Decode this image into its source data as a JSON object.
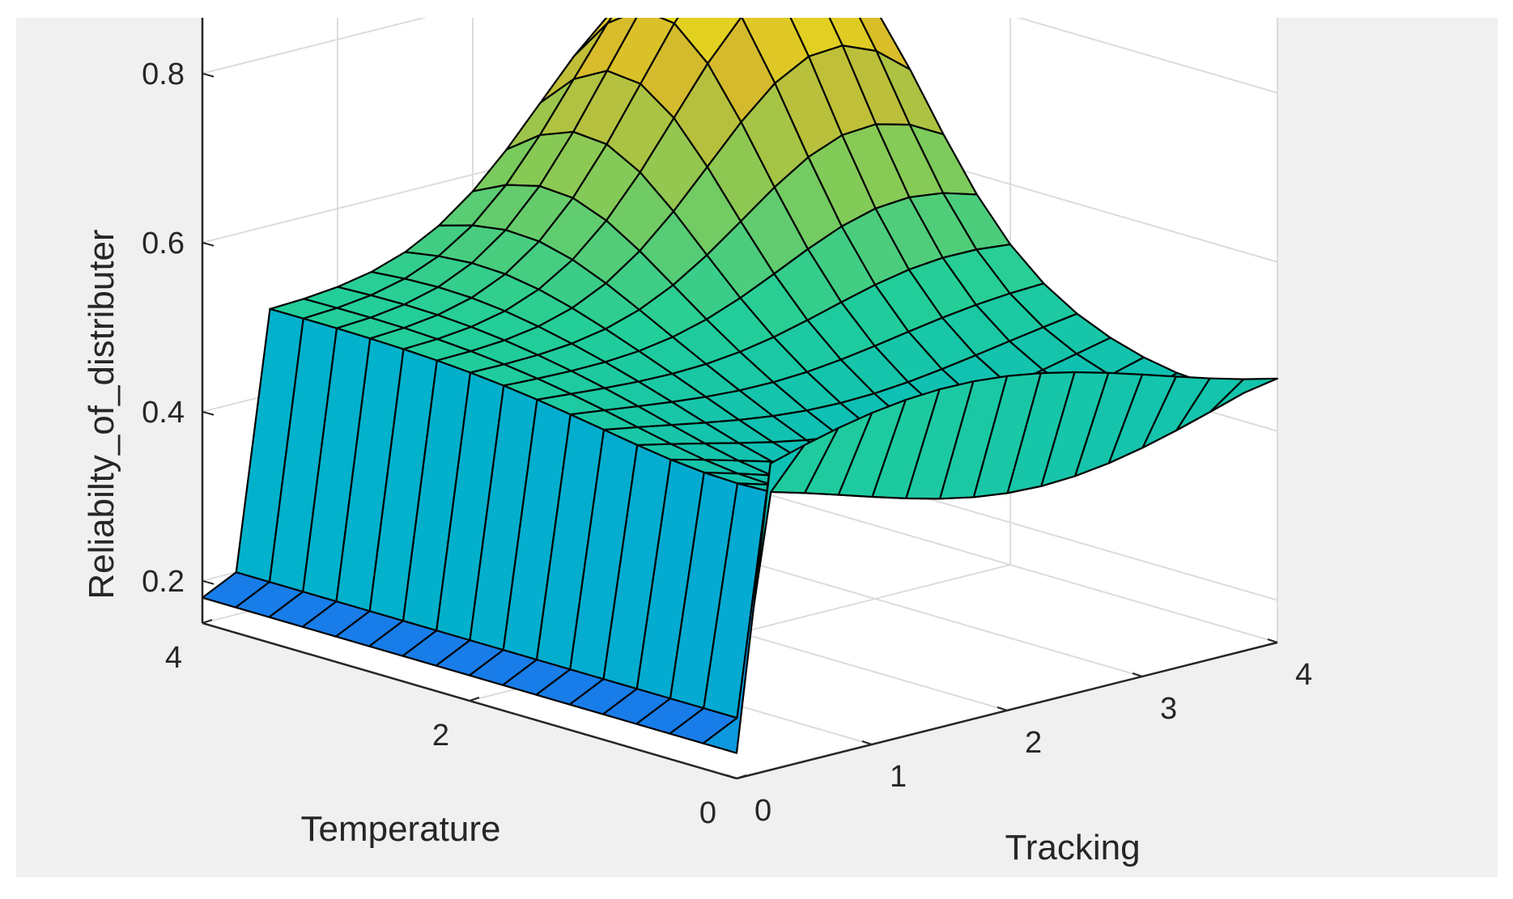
{
  "chart_data": {
    "type": "surface",
    "zlabel": "Reliabilty_of_distributer",
    "xlabel": "Temperature",
    "ylabel": "Tracking",
    "x_range": [
      0,
      4
    ],
    "y_range": [
      0,
      4
    ],
    "z_range": [
      0.2,
      0.8
    ],
    "x_ticks": [
      "0",
      "2",
      "4"
    ],
    "y_ticks": [
      "0",
      "1",
      "2",
      "3",
      "4"
    ],
    "z_ticks": [
      "0.2",
      "0.4",
      "0.6",
      "0.8"
    ],
    "grid": true,
    "colormap": "parula",
    "grid_x": [
      0,
      0.25,
      0.5,
      0.75,
      1,
      1.25,
      1.5,
      1.75,
      2,
      2.25,
      2.5,
      2.75,
      3,
      3.25,
      3.5,
      3.75,
      4
    ],
    "grid_y": [
      0,
      0.25,
      0.5,
      0.75,
      1,
      1.25,
      1.5,
      1.75,
      2,
      2.25,
      2.5,
      2.75,
      3,
      3.25,
      3.5,
      3.75,
      4
    ],
    "surface_peak": {
      "temperature": 3.5,
      "tracking": 3.5,
      "value": 0.87
    }
  },
  "colors": {
    "figure_background": "#f0f0f0",
    "axes_background": "#ffffff",
    "edge": "#000000",
    "low": "#3e26a8",
    "high": "#f9fb0e"
  }
}
